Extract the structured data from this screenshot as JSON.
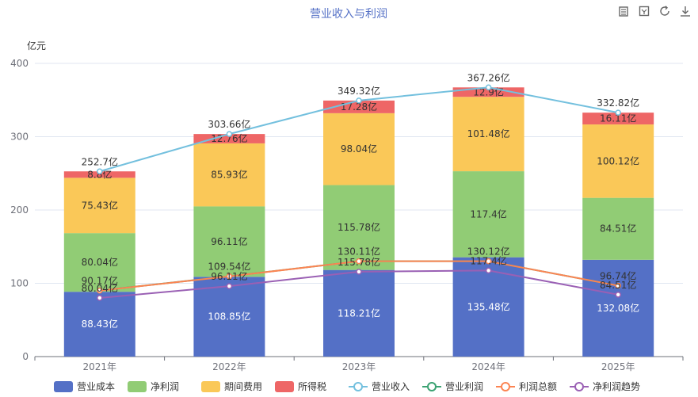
{
  "toolbar": {
    "icons": [
      "data-view-icon",
      "restore-icon",
      "refresh-icon",
      "download-icon"
    ]
  },
  "chart_data": {
    "type": "bar",
    "title": "营业收入与利润",
    "ylabel": "亿元",
    "ylim": [
      0,
      400
    ],
    "yticks": [
      0,
      100,
      200,
      300,
      400
    ],
    "grid": true,
    "legend_position": "bottom",
    "categories": [
      "2021年",
      "2022年",
      "2023年",
      "2024年",
      "2025年"
    ],
    "stacked_series": [
      {
        "name": "营业成本",
        "color": "#5470c6",
        "values": [
          88.43,
          108.85,
          118.21,
          135.48,
          132.08
        ],
        "labels": [
          "88.43亿",
          "108.85亿",
          "118.21亿",
          "135.48亿",
          "132.08亿"
        ],
        "label_color": "#ffffff"
      },
      {
        "name": "净利润",
        "color": "#91cc75",
        "values": [
          80.04,
          96.11,
          115.78,
          117.4,
          84.51
        ],
        "labels": [
          "80.04亿",
          "96.11亿",
          "115.78亿",
          "117.4亿",
          "84.51亿"
        ],
        "label_color": "#333333"
      },
      {
        "name": "期间费用",
        "color": "#fac858",
        "values": [
          75.43,
          85.93,
          98.04,
          101.48,
          100.12
        ],
        "labels": [
          "75.43亿",
          "85.93亿",
          "98.04亿",
          "101.48亿",
          "100.12亿"
        ],
        "label_color": "#333333"
      },
      {
        "name": "所得税",
        "color": "#ee6666",
        "values": [
          8.8,
          12.76,
          17.28,
          12.9,
          16.11
        ],
        "labels": [
          "8.8亿",
          "12.76亿",
          "17.28亿",
          "12.9亿",
          "16.11亿"
        ],
        "label_color": "#333333"
      }
    ],
    "line_series": [
      {
        "name": "营业收入",
        "color": "#73c0de",
        "values": [
          252.7,
          303.66,
          349.32,
          367.26,
          332.82
        ],
        "labels": [
          "252.7亿",
          "303.66亿",
          "349.32亿",
          "367.26亿",
          "332.82亿"
        ]
      },
      {
        "name": "营业利润",
        "color": "#3ba272",
        "values": [
          90.17,
          109.54,
          130.11,
          130.12,
          96.74
        ],
        "labels": [
          "90.17亿",
          "109.54亿",
          "130.11亿",
          "130.12亿",
          "96.74亿"
        ]
      },
      {
        "name": "利润总额",
        "color": "#fc8452",
        "values": [
          90.04,
          109.5,
          130.08,
          130.12,
          96.72
        ],
        "labels": [
          "",
          "",
          "",
          "",
          ""
        ]
      },
      {
        "name": "净利润趋势",
        "color": "#9a60b4",
        "values": [
          80.04,
          96.11,
          115.78,
          117.4,
          84.51
        ],
        "labels": [
          "80.04亿",
          "96.11亿",
          "115.78亿",
          "117.4亿",
          "84.51亿"
        ]
      }
    ]
  }
}
